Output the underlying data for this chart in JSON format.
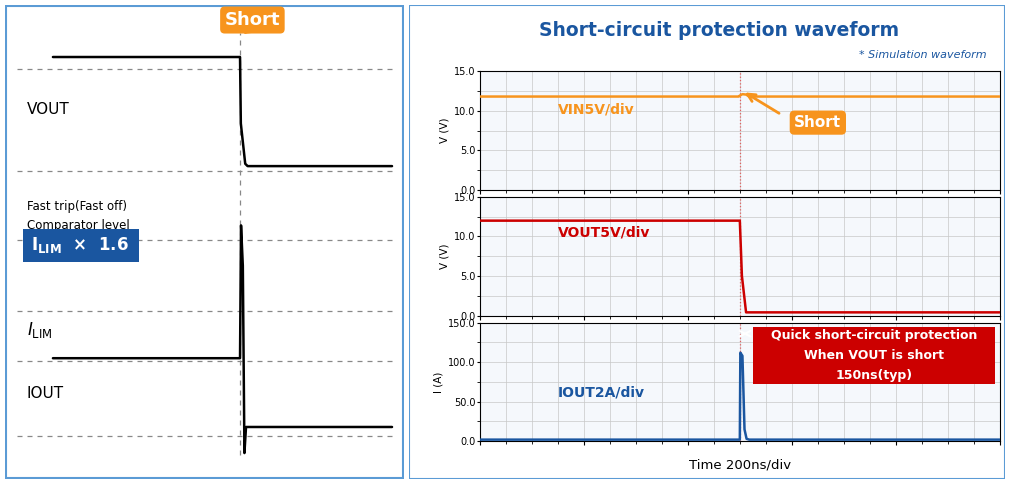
{
  "title_right": "Short-circuit protection waveform",
  "subtitle_right": "* Simulation waveform",
  "title_color": "#1a56a0",
  "border_color": "#5b9bd5",
  "short_box_color": "#f7941d",
  "short_text": "Short",
  "vin_label": "VIN5V/div",
  "vout_label": "VOUT5V/div",
  "iout_label": "IOUT2A/div",
  "xlabel": "Time 200ns/div",
  "vin_color": "#f7941d",
  "vout_color": "#cc0000",
  "iout_color": "#1a56a0",
  "grid_color": "#c8c8c8",
  "annotation_box_color": "#cc0000",
  "annotation_text": "Quick short-circuit protection\nWhen VOUT is short\n150ns(typ)",
  "ilim_box_bg": "#1a56a0",
  "ilim_box_text_color": "#ffffff",
  "panel_bg": "#f5f8fc"
}
